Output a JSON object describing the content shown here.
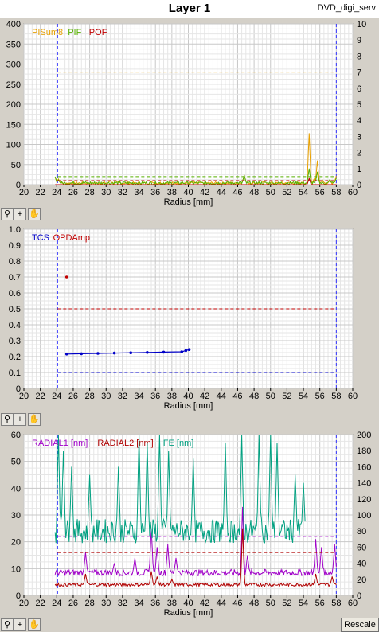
{
  "window": {
    "title": "Layer 1",
    "app_name": "DVD_digi_serv"
  },
  "toolbar_icons": [
    "zoom-icon",
    "crosshair-icon",
    "hand-pan-icon"
  ],
  "rescale_label": "Rescale",
  "colors": {
    "pisum8": "#e8a000",
    "pif": "#58b000",
    "pof": "#c00000",
    "tcs": "#0000c8",
    "opdamp": "#c00000",
    "radial1": "#a000c8",
    "radial2": "#b00000",
    "fe": "#00a080",
    "limit": "#3333ff"
  },
  "chart_data": [
    {
      "type": "line",
      "xlabel": "Radius [mm]",
      "xlim": [
        20,
        60
      ],
      "ylim_left": [
        0,
        400
      ],
      "ylim_right": [
        0,
        10
      ],
      "x_ticks": [
        "20",
        "22",
        "24",
        "26",
        "28",
        "30",
        "32",
        "34",
        "36",
        "38",
        "40",
        "42",
        "44",
        "46",
        "48",
        "50",
        "52",
        "54",
        "56",
        "58",
        "60"
      ],
      "y_ticks_left": [
        "0",
        "50",
        "100",
        "150",
        "200",
        "250",
        "300",
        "350",
        "400"
      ],
      "y_ticks_right": [
        "0",
        "1",
        "2",
        "3",
        "4",
        "5",
        "6",
        "7",
        "8",
        "9",
        "10"
      ],
      "grid": true,
      "legend_position": "top-left",
      "vertical_limits": [
        24.1,
        58.0
      ],
      "series": [
        {
          "name": "PISum8",
          "color": "#e8a000",
          "axis": "left",
          "baseline": 4,
          "noise": 3,
          "spikes": [
            [
              23.8,
              18
            ],
            [
              24.2,
              14
            ],
            [
              30.5,
              10
            ],
            [
              35.5,
              8
            ],
            [
              46.8,
              24
            ],
            [
              54.7,
              128
            ],
            [
              55.3,
              14
            ],
            [
              55.7,
              60
            ],
            [
              56.3,
              12
            ],
            [
              57.2,
              10
            ],
            [
              58.0,
              22
            ]
          ],
          "threshold": 280
        },
        {
          "name": "PIF",
          "color": "#58b000",
          "axis": "right",
          "baseline": 0.1,
          "noise": 0.1,
          "spikes": [
            [
              23.8,
              0.5
            ],
            [
              24.2,
              0.3
            ],
            [
              46.8,
              0.6
            ],
            [
              54.7,
              1.0
            ],
            [
              55.7,
              0.8
            ],
            [
              57.2,
              0.3
            ],
            [
              58.0,
              0.4
            ]
          ],
          "threshold": 0.5
        },
        {
          "name": "POF",
          "color": "#c00000",
          "axis": "right",
          "baseline": 0,
          "noise": 0,
          "spikes": [
            [
              54.7,
              0.4
            ]
          ],
          "threshold": 0.25
        }
      ]
    },
    {
      "type": "scatter",
      "xlabel": "Radius [mm]",
      "xlim": [
        20,
        60
      ],
      "ylim": [
        0,
        1
      ],
      "x_ticks": [
        "20",
        "22",
        "24",
        "26",
        "28",
        "30",
        "32",
        "34",
        "36",
        "38",
        "40",
        "42",
        "44",
        "46",
        "48",
        "50",
        "52",
        "54",
        "56",
        "58",
        "60"
      ],
      "y_ticks": [
        "0",
        "0.1",
        "0.2",
        "0.3",
        "0.4",
        "0.5",
        "0.6",
        "0.7",
        "0.8",
        "0.9",
        "1.0"
      ],
      "grid": true,
      "legend_position": "top-left",
      "vertical_limits": [
        24.1,
        58.0
      ],
      "series": [
        {
          "name": "TCS",
          "color": "#0000c8",
          "points": [
            [
              25.2,
              0.216
            ],
            [
              27.0,
              0.218
            ],
            [
              29.0,
              0.22
            ],
            [
              31.0,
              0.222
            ],
            [
              33.0,
              0.224
            ],
            [
              35.0,
              0.226
            ],
            [
              37.0,
              0.228
            ],
            [
              39.2,
              0.23
            ],
            [
              39.7,
              0.238
            ],
            [
              40.1,
              0.244
            ]
          ],
          "threshold": 0.1
        },
        {
          "name": "OPDAmp",
          "color": "#c00000",
          "points": [
            [
              25.2,
              0.7
            ]
          ],
          "threshold": 0.5
        }
      ]
    },
    {
      "type": "line",
      "xlabel": "Radius [mm]",
      "xlim": [
        20,
        60
      ],
      "ylim_left": [
        0,
        60
      ],
      "ylim_right": [
        0,
        200
      ],
      "x_ticks": [
        "20",
        "22",
        "24",
        "26",
        "28",
        "30",
        "32",
        "34",
        "36",
        "38",
        "40",
        "42",
        "44",
        "46",
        "48",
        "50",
        "52",
        "54",
        "56",
        "58",
        "60"
      ],
      "y_ticks_left": [
        "0",
        "10",
        "20",
        "30",
        "40",
        "50",
        "60"
      ],
      "y_ticks_right": [
        "0",
        "20",
        "40",
        "60",
        "80",
        "100",
        "120",
        "140",
        "160",
        "180",
        "200"
      ],
      "grid": true,
      "legend_position": "top-left",
      "vertical_limits": [
        24.1,
        58.0
      ],
      "series": [
        {
          "name": "RADIAL1 [nm]",
          "color": "#a000c8",
          "axis": "left",
          "baseline": 8.5,
          "noise": 1.2,
          "spikes": [
            [
              27.5,
              16
            ],
            [
              31,
              12
            ],
            [
              33.5,
              14
            ],
            [
              35.5,
              25
            ],
            [
              36.2,
              18
            ],
            [
              37.5,
              19
            ],
            [
              38.5,
              14
            ],
            [
              46.6,
              33
            ],
            [
              47.2,
              15
            ],
            [
              55.5,
              21
            ],
            [
              56.2,
              18
            ],
            [
              57.8,
              19
            ]
          ],
          "threshold": 22
        },
        {
          "name": "RADIAL2 [nm]",
          "color": "#b00000",
          "axis": "left",
          "baseline": 4.0,
          "noise": 0.6,
          "spikes": [
            [
              27.5,
              8
            ],
            [
              35.5,
              9
            ],
            [
              36.2,
              7
            ],
            [
              38.0,
              6
            ],
            [
              46.6,
              25
            ],
            [
              55.5,
              8
            ],
            [
              57.5,
              7
            ]
          ],
          "threshold": 16
        },
        {
          "name": "FE [nm]",
          "color": "#00a080",
          "axis": "right",
          "baseline": 80,
          "noise": 15,
          "spikes": [
            [
              24.2,
              200
            ],
            [
              24.8,
              180
            ],
            [
              25.8,
              160
            ],
            [
              28.0,
              150
            ],
            [
              31.5,
              160
            ],
            [
              34.0,
              200
            ],
            [
              35.0,
              190
            ],
            [
              36.5,
              200
            ],
            [
              37.6,
              180
            ],
            [
              40.6,
              170
            ],
            [
              44.5,
              190
            ],
            [
              46.5,
              200
            ],
            [
              48.6,
              200
            ],
            [
              50.0,
              200
            ],
            [
              50.8,
              190
            ],
            [
              53.0,
              150
            ],
            [
              54.0,
              140
            ]
          ],
          "end": 54.3,
          "threshold": 54
        }
      ]
    }
  ]
}
